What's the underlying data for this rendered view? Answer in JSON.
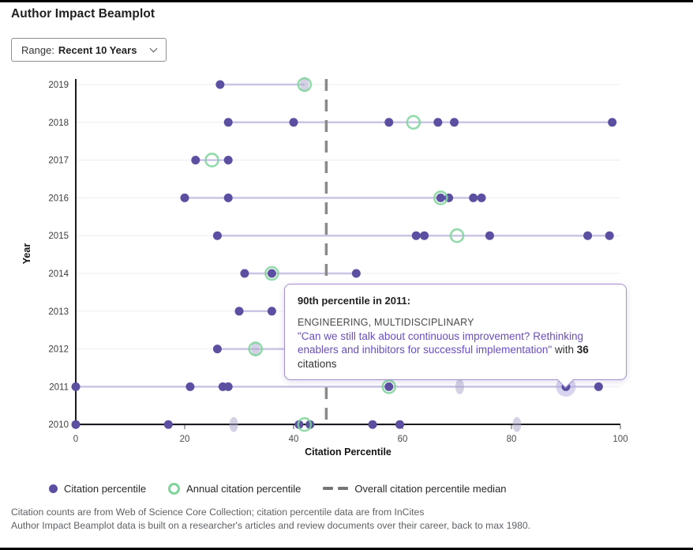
{
  "page": {
    "title": "Author Impact Beamplot",
    "range_label": "Range:",
    "range_value": "Recent 10 Years"
  },
  "colors": {
    "point_purple": "#5b4fa2",
    "annual_green": "#7fd49a",
    "median_gray": "#8a8a8a",
    "beam_line": "#cac4e5",
    "gridline": "#ececf2",
    "faded_point": "#a9a3cb",
    "highlight_halo": "#b4a9e0",
    "tooltip_border": "#a48fd0",
    "link_purple": "#6a4ec2"
  },
  "chart_data": {
    "type": "scatter",
    "subtype": "beamplot",
    "xlabel": "Citation Percentile",
    "ylabel": "Year",
    "xlim": [
      0,
      100
    ],
    "xticks": [
      0,
      20,
      40,
      60,
      80,
      100
    ],
    "overall_median": 46,
    "legend": [
      {
        "label": "Citation percentile",
        "marker": "dot"
      },
      {
        "label": "Annual citation percentile",
        "marker": "ring"
      },
      {
        "label": "Overall citation percentile median",
        "marker": "dashed-line"
      }
    ],
    "rows": [
      {
        "year": "2019",
        "points": [
          26.5
        ],
        "faded": [
          42
        ],
        "annual": 42,
        "line": [
          26.5,
          42
        ]
      },
      {
        "year": "2018",
        "points": [
          28,
          40,
          57.5,
          66.5,
          69.5,
          98.5
        ],
        "faded": [],
        "annual": 62,
        "line": [
          28,
          98.5
        ]
      },
      {
        "year": "2017",
        "points": [
          22,
          28
        ],
        "faded": [],
        "annual": 25,
        "line": [
          22,
          28
        ]
      },
      {
        "year": "2016",
        "points": [
          20,
          28,
          67,
          68.5,
          73,
          74.5
        ],
        "faded": [],
        "annual": 67,
        "line": [
          20,
          74.5
        ]
      },
      {
        "year": "2015",
        "points": [
          26,
          62.5,
          64,
          76,
          94,
          98
        ],
        "faded": [],
        "annual": 70,
        "line": [
          26,
          98
        ]
      },
      {
        "year": "2014",
        "points": [
          31,
          36,
          51.5
        ],
        "faded": [],
        "annual": 36,
        "line": [
          31,
          51.5
        ]
      },
      {
        "year": "2013",
        "points": [
          30,
          36
        ],
        "faded": [],
        "annual": null,
        "line": [
          30,
          36
        ]
      },
      {
        "year": "2012",
        "points": [
          26
        ],
        "faded": [
          33
        ],
        "annual": 33,
        "line": [
          26,
          46
        ]
      },
      {
        "year": "2011",
        "points": [
          0,
          21,
          27,
          28,
          57.5,
          90,
          96
        ],
        "faded": [
          70.5
        ],
        "annual": 57.5,
        "highlight": 90,
        "line": [
          0,
          96
        ]
      },
      {
        "year": "2010",
        "points": [
          0,
          17,
          41,
          43,
          54.5,
          59.5
        ],
        "faded": [
          29,
          81
        ],
        "annual": 42,
        "line": [
          0,
          59.5
        ]
      }
    ]
  },
  "tooltip": {
    "title": "90th percentile in 2011:",
    "category": "ENGINEERING, MULTIDISCIPLINARY",
    "doc_title": "\"Can we still talk about continuous improvement? Rethinking enablers and inhibitors for successful implementation\"",
    "with_text": "with",
    "citations_count": "36",
    "citations_label": "citations"
  },
  "footer": {
    "line1": "Citation counts are from Web of Science Core Collection; citation percentile data are from InCites",
    "line2": "Author Impact Beamplot data is built on a researcher's articles and review documents over their career, back to max 1980."
  }
}
